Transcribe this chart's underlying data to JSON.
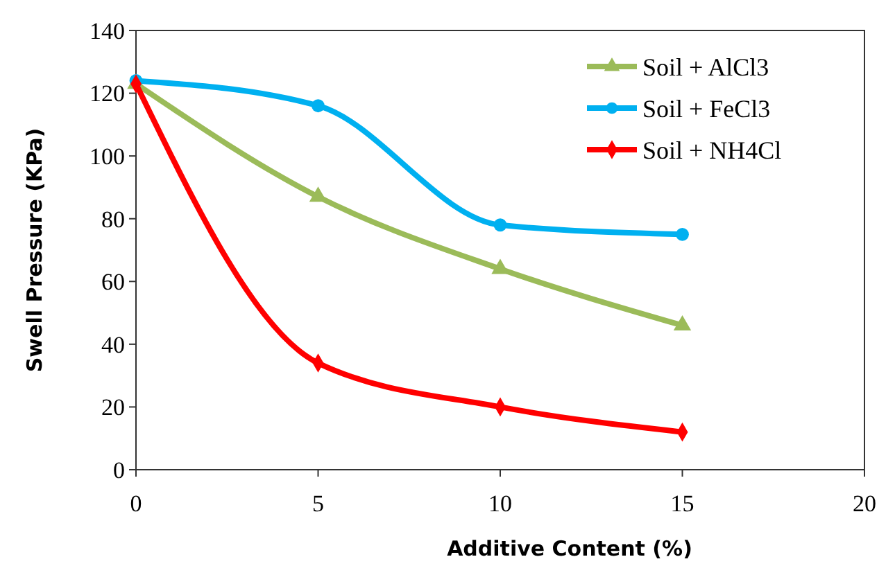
{
  "chart_data": {
    "type": "line",
    "xlabel": "Additive Content (%)",
    "ylabel": "Swell Pressure (KPa)",
    "x": [
      0,
      5,
      10,
      15
    ],
    "xlim": [
      0,
      20
    ],
    "xticks": [
      0,
      5,
      10,
      15,
      20
    ],
    "ylim": [
      0,
      140
    ],
    "yticks": [
      0,
      20,
      40,
      60,
      80,
      100,
      120,
      140
    ],
    "series": [
      {
        "name": "Soil + AlCl3",
        "color": "#9bbb59",
        "marker": "triangle",
        "values": [
          123,
          87,
          64,
          46
        ]
      },
      {
        "name": "Soil + FeCl3",
        "color": "#00b0f0",
        "marker": "circle",
        "values": [
          124,
          116,
          78,
          75
        ]
      },
      {
        "name": "Soil + NH4Cl",
        "color": "#ff0000",
        "marker": "diamond",
        "values": [
          123,
          34,
          20,
          12
        ]
      }
    ],
    "grid": false,
    "legend": "top right"
  }
}
